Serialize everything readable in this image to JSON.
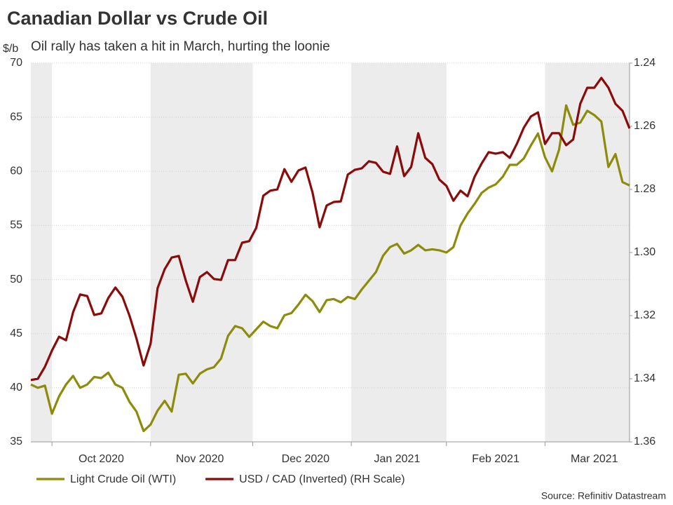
{
  "chart_data": {
    "type": "line",
    "title": "Canadian Dollar vs Crude Oil",
    "subtitle": "Oil rally has taken a hit in March, hurting the loonie",
    "ylabel": "$/b",
    "source": "Source: Refinitiv Datastream",
    "categories": [
      null,
      null,
      null,
      null,
      null,
      null,
      null,
      null,
      null,
      null,
      "Oct 2020",
      null,
      null,
      null,
      null,
      null,
      null,
      null,
      null,
      null,
      null,
      null,
      null,
      null,
      "Nov 2020",
      null,
      null,
      null,
      null,
      null,
      null,
      null,
      null,
      null,
      null,
      null,
      null,
      null,
      null,
      "Dec 2020",
      null,
      null,
      null,
      null,
      null,
      null,
      null,
      null,
      null,
      null,
      null,
      null,
      "Jan 2021",
      null,
      null,
      null,
      null,
      null,
      null,
      null,
      null,
      null,
      null,
      null,
      null,
      null,
      "Feb 2021",
      null,
      null,
      null,
      null,
      null,
      null,
      null,
      null,
      null,
      null,
      null,
      null,
      null,
      "Mar 2021",
      null,
      null,
      null,
      null,
      null
    ],
    "series": [
      {
        "name": "Light Crude Oil (WTI)",
        "color": "#8c8c0a",
        "values": [
          40.3,
          40.0,
          40.2,
          37.6,
          39.2,
          40.3,
          41.1,
          40.0,
          40.3,
          41.0,
          40.9,
          41.4,
          40.3,
          40.0,
          38.7,
          37.8,
          36.0,
          36.6,
          37.9,
          38.8,
          37.8,
          41.2,
          41.3,
          40.4,
          41.3,
          41.7,
          41.9,
          42.7,
          44.8,
          45.7,
          45.5,
          44.7,
          45.4,
          46.1,
          45.7,
          45.5,
          46.7,
          46.9,
          47.7,
          48.6,
          48.0,
          47.0,
          48.1,
          48.2,
          47.9,
          48.4,
          48.2,
          49.1,
          49.9,
          50.7,
          52.2,
          53.0,
          53.3,
          52.4,
          52.7,
          53.2,
          52.7,
          52.8,
          52.7,
          52.5,
          53.0,
          55.0,
          56.1,
          57.0,
          58.0,
          58.5,
          58.8,
          59.5,
          60.6,
          60.6,
          61.2,
          62.4,
          63.5,
          61.3,
          60.0,
          62.0,
          66.1,
          64.3,
          64.5,
          65.6,
          65.2,
          64.6,
          60.4,
          61.6,
          59.0,
          58.7
        ]
      },
      {
        "name": "USD / CAD (Inverted) (RH Scale)",
        "color": "#8b0a0a",
        "axis": "y2",
        "values": [
          1.3404,
          1.34,
          1.3362,
          1.3311,
          1.3267,
          1.3278,
          1.3189,
          1.3133,
          1.3138,
          1.3198,
          1.3193,
          1.3144,
          1.3111,
          1.314,
          1.32,
          1.3273,
          1.3358,
          1.3289,
          1.3113,
          1.3053,
          1.3016,
          1.3011,
          1.3089,
          1.3156,
          1.3078,
          1.3062,
          1.3084,
          1.3087,
          1.3024,
          1.3024,
          1.2969,
          1.2964,
          1.2922,
          1.282,
          1.2804,
          1.28,
          1.2736,
          1.2776,
          1.274,
          1.2731,
          1.2811,
          1.292,
          1.2851,
          1.284,
          1.2838,
          1.2753,
          1.2738,
          1.2733,
          1.2711,
          1.2716,
          1.2744,
          1.2751,
          1.2664,
          1.2758,
          1.2729,
          1.2622,
          1.27,
          1.272,
          1.2769,
          1.2789,
          1.2836,
          1.2804,
          1.2822,
          1.276,
          1.2718,
          1.2682,
          1.2687,
          1.2682,
          1.27,
          1.2656,
          1.2604,
          1.2569,
          1.2556,
          1.2656,
          1.2622,
          1.2622,
          1.266,
          1.2642,
          1.2529,
          1.2478,
          1.2478,
          1.2447,
          1.2478,
          1.2529,
          1.2551,
          1.2607
        ]
      }
    ],
    "ylim": [
      35,
      70
    ],
    "yticks": [
      35,
      40,
      45,
      50,
      55,
      60,
      65,
      70
    ],
    "y2lim": [
      1.36,
      1.24
    ],
    "y2ticks": [
      1.36,
      1.34,
      1.32,
      {
        "value": 1.3,
        "label": "1.30"
      },
      1.28,
      1.26,
      1.24
    ],
    "grid": true,
    "month_shading": true,
    "legend": "bottom"
  }
}
